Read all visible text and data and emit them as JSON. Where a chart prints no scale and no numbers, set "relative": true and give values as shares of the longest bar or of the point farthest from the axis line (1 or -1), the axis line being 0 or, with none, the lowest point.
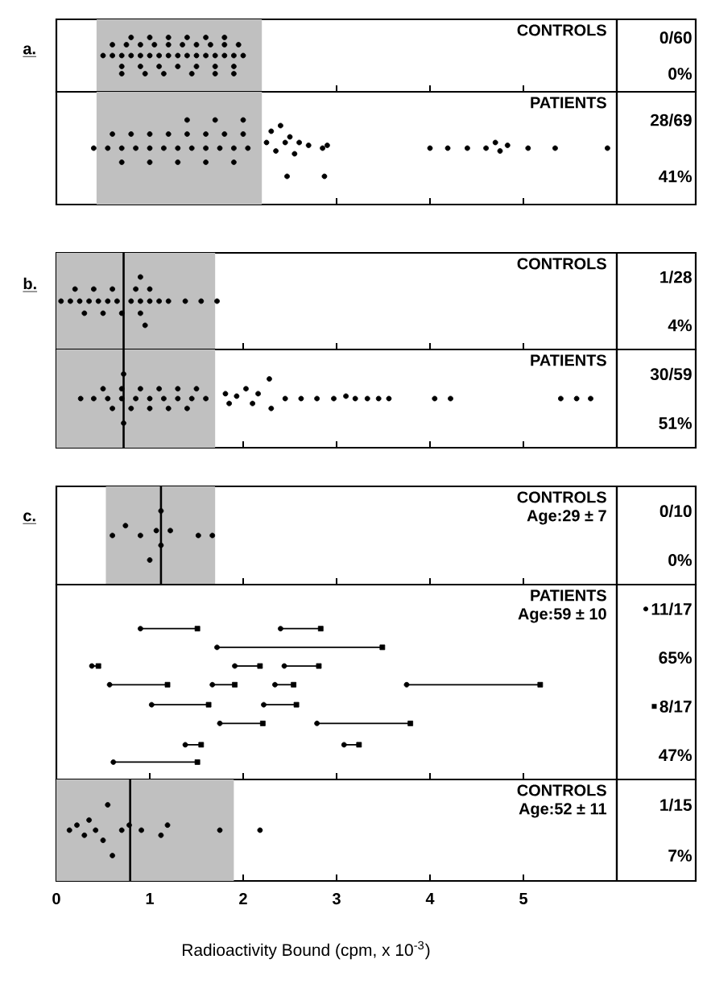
{
  "chart_data": [
    {
      "type": "scatter",
      "title": "a.",
      "relative": true,
      "marker": "circle",
      "xlim": [
        0,
        6
      ],
      "xticks": [
        0,
        1,
        2,
        3,
        4,
        5
      ],
      "tick_labels": false,
      "bands": [
        {
          "axis": "x",
          "from": 0.43,
          "to": 2.2,
          "color": "#c0c0c0"
        }
      ],
      "annotations": [
        "CONTROLS",
        "0/60",
        "0%"
      ],
      "series": [
        {
          "color": "#000000",
          "x": [
            0.5,
            0.6,
            0.7,
            0.8,
            0.9,
            1.0,
            1.1,
            1.2,
            1.3,
            1.4,
            1.5,
            1.6,
            1.7,
            1.8,
            1.9,
            2.0,
            0.6,
            0.75,
            0.9,
            1.05,
            1.2,
            1.35,
            1.5,
            1.65,
            1.8,
            1.95,
            0.7,
            0.9,
            1.1,
            1.3,
            1.5,
            1.7,
            1.9,
            0.8,
            1.0,
            1.2,
            1.4,
            1.6,
            1.8,
            0.7,
            0.95,
            1.15,
            1.45,
            1.7,
            1.9
          ],
          "values": [
            0.5,
            0.5,
            0.5,
            0.5,
            0.5,
            0.5,
            0.5,
            0.5,
            0.5,
            0.5,
            0.5,
            0.5,
            0.5,
            0.5,
            0.5,
            0.5,
            0.8,
            0.8,
            0.8,
            0.8,
            0.8,
            0.8,
            0.8,
            0.8,
            0.8,
            0.8,
            0.2,
            0.2,
            0.2,
            0.2,
            0.2,
            0.2,
            0.2,
            1.0,
            1.0,
            1.0,
            1.0,
            1.0,
            1.0,
            0,
            0,
            0,
            0,
            0,
            0
          ]
        }
      ]
    },
    {
      "type": "scatter",
      "relative": true,
      "marker": "circle",
      "xlim": [
        0,
        6
      ],
      "xticks": [
        0,
        1,
        2,
        3,
        4,
        5
      ],
      "tick_labels": false,
      "bands": [
        {
          "axis": "x",
          "from": 0.43,
          "to": 2.2,
          "color": "#c0c0c0"
        }
      ],
      "annotations": [
        "PATIENTS",
        "28/69",
        "41%"
      ],
      "series": [
        {
          "color": "#000000",
          "x": [
            0.4,
            0.55,
            0.7,
            0.85,
            1.0,
            1.15,
            1.3,
            1.45,
            1.6,
            1.75,
            1.9,
            2.05,
            0.6,
            0.8,
            1.0,
            1.2,
            1.4,
            1.6,
            1.8,
            2.0,
            0.7,
            1.0,
            1.3,
            1.6,
            1.9,
            1.4,
            1.7,
            2.0,
            2.47,
            2.87,
            2.25,
            2.3,
            2.35,
            2.4,
            2.45,
            2.5,
            2.55,
            2.6,
            2.7,
            2.85,
            2.9,
            4.0,
            4.19,
            4.4,
            4.6,
            4.7,
            4.75,
            4.83,
            5.05,
            5.34,
            5.9
          ],
          "values": [
            0.5,
            0.5,
            0.5,
            0.5,
            0.5,
            0.5,
            0.5,
            0.5,
            0.5,
            0.5,
            0.5,
            0.5,
            0.75,
            0.75,
            0.75,
            0.75,
            0.75,
            0.75,
            0.75,
            0.75,
            0.25,
            0.25,
            0.25,
            0.25,
            0.25,
            1.0,
            1.0,
            1.0,
            0,
            0,
            0.6,
            0.8,
            0.45,
            0.9,
            0.6,
            0.7,
            0.4,
            0.6,
            0.55,
            0.5,
            0.55,
            0.5,
            0.5,
            0.5,
            0.5,
            0.6,
            0.45,
            0.55,
            0.5,
            0.5,
            0.5
          ]
        }
      ]
    },
    {
      "type": "scatter",
      "title": "b.",
      "relative": true,
      "marker": "circle",
      "xlim": [
        0,
        6
      ],
      "xticks": [
        0,
        1,
        2,
        3,
        4,
        5
      ],
      "tick_labels": false,
      "bands": [
        {
          "axis": "x",
          "from": 0,
          "to": 1.7,
          "color": "#c0c0c0"
        }
      ],
      "ref_lines": [
        {
          "axis": "x",
          "value": 0.72,
          "color": "#000000"
        }
      ],
      "annotations": [
        "CONTROLS",
        "1/28",
        "4%"
      ],
      "series": [
        {
          "color": "#000000",
          "x": [
            0.05,
            0.15,
            0.25,
            0.35,
            0.45,
            0.55,
            0.65,
            0.8,
            0.9,
            1.0,
            1.1,
            1.2,
            0.2,
            0.4,
            0.6,
            0.85,
            1.0,
            0.3,
            0.5,
            0.7,
            0.9,
            0.9,
            0.95,
            1.38,
            1.55,
            1.72
          ],
          "values": [
            0.5,
            0.5,
            0.5,
            0.5,
            0.5,
            0.5,
            0.5,
            0.5,
            0.5,
            0.5,
            0.5,
            0.5,
            0.75,
            0.75,
            0.75,
            0.75,
            0.75,
            0.25,
            0.25,
            0.25,
            0.25,
            1,
            0,
            0.5,
            0.5,
            0.5
          ]
        }
      ]
    },
    {
      "type": "scatter",
      "relative": true,
      "marker": "circle",
      "xlim": [
        0,
        6
      ],
      "xticks": [
        0,
        1,
        2,
        3,
        4,
        5
      ],
      "tick_labels": false,
      "bands": [
        {
          "axis": "x",
          "from": 0,
          "to": 1.7,
          "color": "#c0c0c0"
        }
      ],
      "ref_lines": [
        {
          "axis": "x",
          "value": 0.72,
          "color": "#000000"
        }
      ],
      "annotations": [
        "PATIENTS",
        "30/59",
        "51%"
      ],
      "series": [
        {
          "color": "#000000",
          "x": [
            0.26,
            0.4,
            0.55,
            0.7,
            0.85,
            1.0,
            1.15,
            1.3,
            1.45,
            1.6,
            0.5,
            0.7,
            0.9,
            1.1,
            1.3,
            1.5,
            0.6,
            0.8,
            1.0,
            1.2,
            1.4,
            0.72,
            0.72,
            1.81,
            1.85,
            1.93,
            2.03,
            2.1,
            2.16,
            2.28,
            2.3,
            2.45,
            2.62,
            2.79,
            2.97,
            3.1,
            3.2,
            3.33,
            3.45,
            3.56,
            4.05,
            4.22,
            5.4,
            5.57,
            5.72
          ],
          "values": [
            0.5,
            0.5,
            0.5,
            0.5,
            0.5,
            0.5,
            0.5,
            0.5,
            0.5,
            0.5,
            0.7,
            0.7,
            0.7,
            0.7,
            0.7,
            0.7,
            0.3,
            0.3,
            0.3,
            0.3,
            0.3,
            1,
            0,
            0.6,
            0.4,
            0.55,
            0.7,
            0.4,
            0.6,
            0.9,
            0.3,
            0.5,
            0.5,
            0.5,
            0.5,
            0.55,
            0.5,
            0.5,
            0.5,
            0.5,
            0.5,
            0.5,
            0.5,
            0.5,
            0.5
          ]
        }
      ]
    },
    {
      "type": "scatter",
      "title": "c.",
      "relative": true,
      "marker": "circle",
      "xlim": [
        0,
        6
      ],
      "xticks": [
        0,
        1,
        2,
        3,
        4,
        5
      ],
      "tick_labels": false,
      "bands": [
        {
          "axis": "x",
          "from": 0.53,
          "to": 1.7,
          "color": "#c0c0c0"
        }
      ],
      "ref_lines": [
        {
          "axis": "x",
          "value": 1.12,
          "color": "#000000"
        }
      ],
      "annotations": [
        "CONTROLS",
        "Age:29 ± 7",
        "0/10",
        "0%"
      ],
      "series": [
        {
          "color": "#000000",
          "x": [
            0.6,
            0.74,
            0.9,
            1.07,
            1.12,
            1.12,
            1.22,
            1.52,
            1.67,
            1.0
          ],
          "values": [
            0.5,
            0.7,
            0.5,
            0.6,
            0.3,
            1,
            0.6,
            0.5,
            0.5,
            0
          ]
        }
      ]
    },
    {
      "type": "scatter",
      "relative": true,
      "xlim": [
        0,
        6
      ],
      "xticks": [
        0,
        1,
        2,
        3,
        4,
        5
      ],
      "tick_labels": false,
      "legend": "right",
      "annotations": [
        "PATIENTS",
        "Age:59 ± 10",
        "65%",
        "47%"
      ],
      "series": [
        {
          "name": "11/17",
          "marker": "circle",
          "color": "#000000",
          "x": [
            0.9,
            2.4,
            1.72,
            0.38,
            1.91,
            2.44,
            0.57,
            1.67,
            2.34,
            3.75,
            1.02,
            2.22,
            1.75,
            2.79,
            1.38,
            3.08,
            0.61
          ],
          "values": [
            1,
            1,
            0.86,
            0.72,
            0.72,
            0.72,
            0.58,
            0.58,
            0.58,
            0.58,
            0.43,
            0.43,
            0.29,
            0.29,
            0.13,
            0.13,
            0
          ],
          "xerrors": [
            [
              0.9,
              1.51
            ],
            [
              2.4,
              2.83
            ],
            [
              1.72,
              3.49
            ],
            [
              0.38,
              0.45
            ],
            [
              1.91,
              2.18
            ],
            [
              2.44,
              2.81
            ],
            [
              0.57,
              1.19
            ],
            [
              1.67,
              1.91
            ],
            [
              2.34,
              2.54
            ],
            [
              3.75,
              5.18
            ],
            [
              1.02,
              1.63
            ],
            [
              2.22,
              2.57
            ],
            [
              1.75,
              2.21
            ],
            [
              2.79,
              3.79
            ],
            [
              1.38,
              1.55
            ],
            [
              3.08,
              3.24
            ],
            [
              0.61,
              1.51
            ]
          ]
        },
        {
          "name": "8/17",
          "marker": "square",
          "color": "#000000",
          "x": [
            1.51,
            2.83,
            3.49,
            0.45,
            2.18,
            2.81,
            1.19,
            1.91,
            2.54,
            5.18,
            1.63,
            2.57,
            2.21,
            3.79,
            1.55,
            3.24,
            1.51
          ],
          "values": [
            1,
            1,
            0.86,
            0.72,
            0.72,
            0.72,
            0.58,
            0.58,
            0.58,
            0.58,
            0.43,
            0.43,
            0.29,
            0.29,
            0.13,
            0.13,
            0
          ]
        }
      ]
    },
    {
      "type": "scatter",
      "relative": true,
      "marker": "circle",
      "xlim": [
        0,
        6
      ],
      "xticks": [
        0,
        1,
        2,
        3,
        4,
        5
      ],
      "tick_labels": "x",
      "xlabel": "Radioactivity   Bound    (cpm, x 10$^{-3}$)",
      "bands": [
        {
          "axis": "x",
          "from": 0,
          "to": 1.9,
          "color": "#c0c0c0"
        }
      ],
      "ref_lines": [
        {
          "axis": "x",
          "value": 0.79,
          "color": "#000000"
        }
      ],
      "annotations": [
        "CONTROLS",
        "Age:52 ± 11",
        "1/15",
        "7%"
      ],
      "series": [
        {
          "color": "#000000",
          "x": [
            0.14,
            0.22,
            0.3,
            0.35,
            0.42,
            0.5,
            0.55,
            0.6,
            0.7,
            0.78,
            0.91,
            1.12,
            1.19,
            1.75,
            2.18
          ],
          "values": [
            0.5,
            0.6,
            0.4,
            0.7,
            0.5,
            0.3,
            1,
            0,
            0.5,
            0.6,
            0.5,
            0.4,
            0.6,
            0.5,
            0.5
          ]
        }
      ]
    }
  ]
}
